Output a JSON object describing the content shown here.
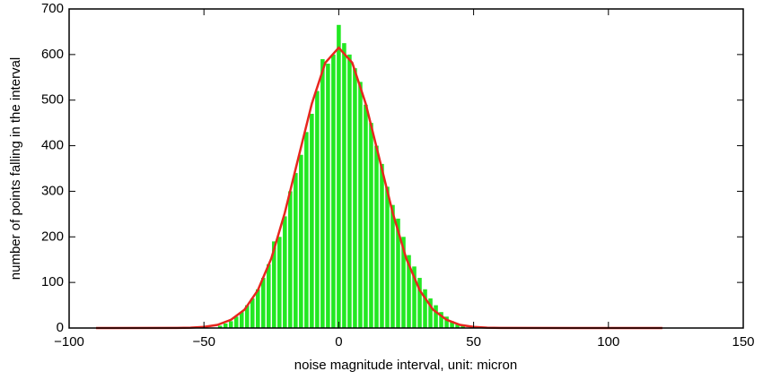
{
  "chart_data": {
    "type": "histogram",
    "xlabel": "noise magnitude interval, unit: micron",
    "ylabel": "number of points falling in the interval",
    "bins": [
      -45,
      -43,
      -41,
      -39,
      -37,
      -35,
      -33,
      -31,
      -29,
      -27,
      -25,
      -23,
      -21,
      -19,
      -17,
      -15,
      -13,
      -11,
      -9,
      -7,
      -5,
      -3,
      -1,
      1,
      3,
      5,
      7,
      9,
      11,
      13,
      15,
      17,
      19,
      21,
      23,
      25,
      27,
      29,
      31,
      33,
      35,
      37,
      39,
      41,
      43,
      45,
      47
    ],
    "values": [
      5,
      10,
      15,
      25,
      35,
      50,
      65,
      85,
      110,
      140,
      190,
      200,
      245,
      300,
      340,
      380,
      430,
      470,
      520,
      590,
      580,
      600,
      665,
      625,
      600,
      570,
      540,
      490,
      450,
      400,
      360,
      310,
      270,
      240,
      200,
      160,
      135,
      110,
      85,
      65,
      50,
      35,
      25,
      15,
      8,
      5
    ],
    "color": "#22e822",
    "fit": {
      "type": "line",
      "color": "#e8261e",
      "x": [
        -90,
        -60,
        -55,
        -50,
        -45,
        -40,
        -35,
        -30,
        -25,
        -20,
        -15,
        -10,
        -5,
        0,
        5,
        10,
        15,
        20,
        25,
        30,
        35,
        40,
        45,
        50,
        55,
        60,
        90,
        120
      ],
      "values": [
        0,
        0.2,
        0.7,
        2.4,
        6.8,
        18,
        40,
        83,
        153,
        253,
        373,
        492,
        582,
        615,
        582,
        492,
        373,
        253,
        153,
        83,
        40,
        18,
        6.8,
        2.4,
        0.7,
        0.2,
        0,
        0
      ]
    },
    "xlim": [
      -100,
      150
    ],
    "xticks": [
      {
        "value": -100,
        "label": "−100"
      },
      {
        "value": -50,
        "label": "−50"
      },
      0,
      50,
      100,
      150
    ],
    "ylim": [
      0,
      700
    ],
    "yticks": [
      0,
      100,
      200,
      300,
      400,
      500,
      600,
      700
    ],
    "grid": false
  }
}
